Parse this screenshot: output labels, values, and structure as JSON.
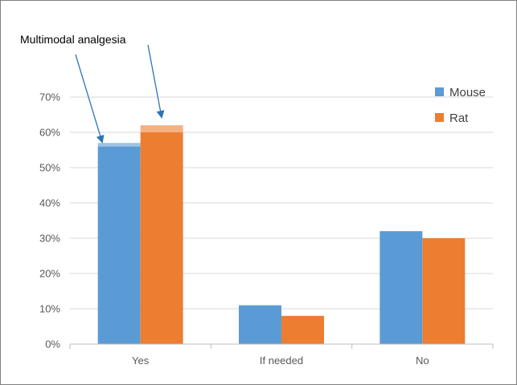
{
  "chart_data": {
    "type": "bar",
    "categories": [
      "Yes",
      "If needed",
      "No"
    ],
    "series": [
      {
        "name": "Mouse",
        "values": [
          56,
          11,
          32
        ],
        "color": "#5b9bd5",
        "extra": [
          1,
          0,
          0
        ],
        "extra_color": "#9dc3e6"
      },
      {
        "name": "Rat",
        "values": [
          60,
          8,
          30
        ],
        "color": "#ed7d31",
        "extra": [
          2,
          0,
          0
        ],
        "extra_color": "#f4b183"
      }
    ],
    "ylim": [
      0,
      70
    ],
    "yticks": [
      0,
      10,
      20,
      30,
      40,
      50,
      60,
      70
    ],
    "ytick_labels": [
      "0%",
      "10%",
      "20%",
      "30%",
      "40%",
      "50%",
      "60%",
      "70%"
    ],
    "grid": true,
    "legend_position": "top-right",
    "annotation": "Multimodal analgesia",
    "arrow_color": "#2e75b6"
  }
}
